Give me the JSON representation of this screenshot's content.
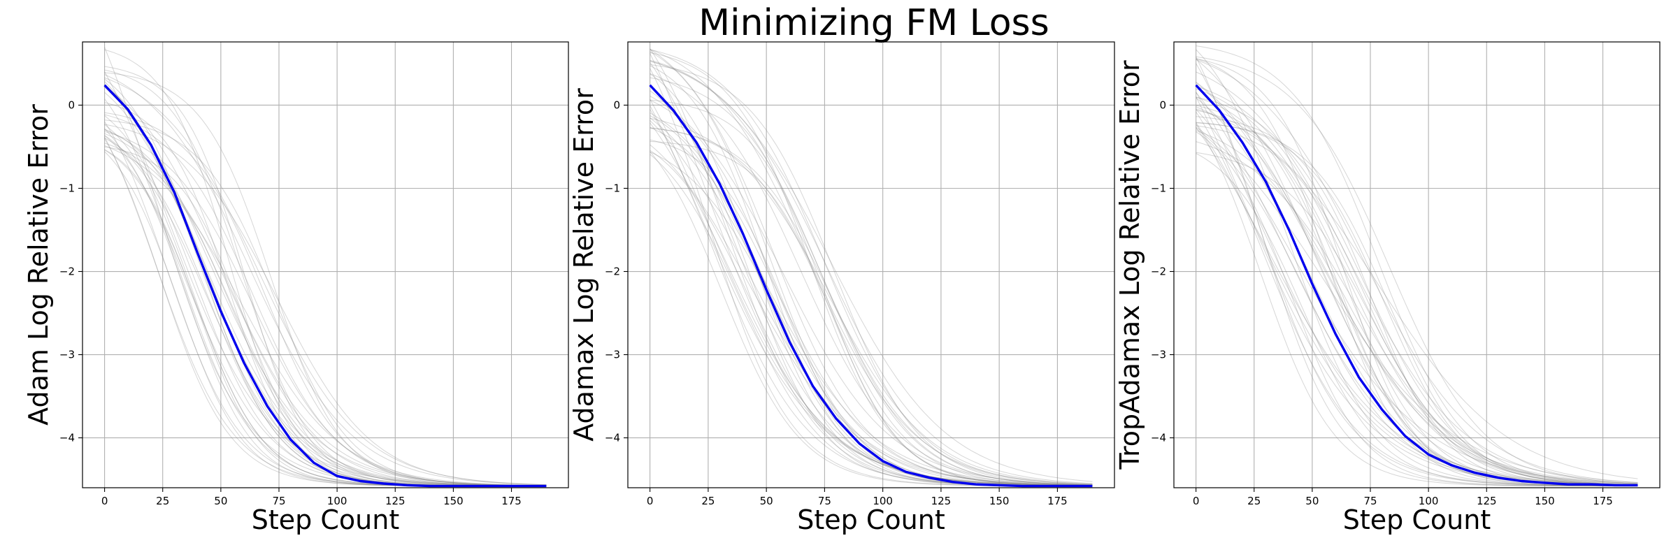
{
  "chart_data": {
    "suptitle": "Minimizing FM Loss",
    "panels": [
      {
        "type": "line",
        "title": "",
        "xlabel": "Step Count",
        "ylabel": "Adam Log Relative Error",
        "xlim": [
          -9.5,
          199.5
        ],
        "ylim": [
          -4.6,
          0.76
        ],
        "xticks": [
          0,
          25,
          50,
          75,
          100,
          125,
          150,
          175
        ],
        "yticks": [
          -4,
          -3,
          -2,
          -1,
          0
        ],
        "grid": true,
        "floor": -4.58,
        "mean_series": {
          "color": "#0000ee",
          "x": [
            0,
            10,
            20,
            30,
            40,
            50,
            60,
            70,
            80,
            90,
            100,
            110,
            120,
            130,
            140,
            150,
            160,
            170,
            180,
            190
          ],
          "y": [
            0.24,
            -0.05,
            -0.48,
            -1.05,
            -1.78,
            -2.48,
            -3.1,
            -3.62,
            -4.02,
            -4.3,
            -4.46,
            -4.52,
            -4.55,
            -4.57,
            -4.58,
            -4.58,
            -4.58,
            -4.58,
            -4.58,
            -4.58
          ]
        },
        "trials": {
          "count": 40,
          "color": "#808080",
          "start_range": [
            -0.6,
            0.72
          ],
          "half_point_range": [
            20,
            75
          ],
          "rate_range": [
            0.045,
            0.075
          ],
          "seed": 11
        }
      },
      {
        "type": "line",
        "title": "",
        "xlabel": "Step Count",
        "ylabel": "Adamax Log Relative Error",
        "xlim": [
          -9.5,
          199.5
        ],
        "ylim": [
          -4.6,
          0.76
        ],
        "xticks": [
          0,
          25,
          50,
          75,
          100,
          125,
          150,
          175
        ],
        "yticks": [
          -4,
          -3,
          -2,
          -1,
          0
        ],
        "grid": true,
        "floor": -4.58,
        "mean_series": {
          "color": "#0000ee",
          "x": [
            0,
            10,
            20,
            30,
            40,
            50,
            60,
            70,
            80,
            90,
            100,
            110,
            120,
            130,
            140,
            150,
            160,
            170,
            180,
            190
          ],
          "y": [
            0.24,
            -0.06,
            -0.45,
            -0.95,
            -1.55,
            -2.22,
            -2.85,
            -3.38,
            -3.77,
            -4.07,
            -4.28,
            -4.41,
            -4.48,
            -4.53,
            -4.56,
            -4.57,
            -4.58,
            -4.58,
            -4.58,
            -4.58
          ]
        },
        "trials": {
          "count": 40,
          "color": "#808080",
          "start_range": [
            -0.6,
            0.72
          ],
          "half_point_range": [
            22,
            82
          ],
          "rate_range": [
            0.04,
            0.065
          ],
          "seed": 29
        }
      },
      {
        "type": "line",
        "title": "",
        "xlabel": "Step Count",
        "ylabel": "TropAdamax Log Relative Error",
        "xlim": [
          -9.5,
          199.5
        ],
        "ylim": [
          -4.6,
          0.76
        ],
        "xticks": [
          0,
          25,
          50,
          75,
          100,
          125,
          150,
          175
        ],
        "yticks": [
          -4,
          -3,
          -2,
          -1,
          0
        ],
        "grid": true,
        "floor": -4.58,
        "mean_series": {
          "color": "#0000ee",
          "x": [
            0,
            10,
            20,
            30,
            40,
            50,
            60,
            70,
            80,
            90,
            100,
            110,
            120,
            130,
            140,
            150,
            160,
            170,
            180,
            190
          ],
          "y": [
            0.24,
            -0.06,
            -0.45,
            -0.92,
            -1.5,
            -2.15,
            -2.75,
            -3.27,
            -3.66,
            -3.98,
            -4.2,
            -4.33,
            -4.42,
            -4.48,
            -4.52,
            -4.54,
            -4.56,
            -4.56,
            -4.57,
            -4.57
          ]
        },
        "trials": {
          "count": 40,
          "color": "#808080",
          "start_range": [
            -0.6,
            0.72
          ],
          "half_point_range": [
            20,
            85
          ],
          "rate_range": [
            0.035,
            0.065
          ],
          "seed": 47
        }
      }
    ]
  }
}
